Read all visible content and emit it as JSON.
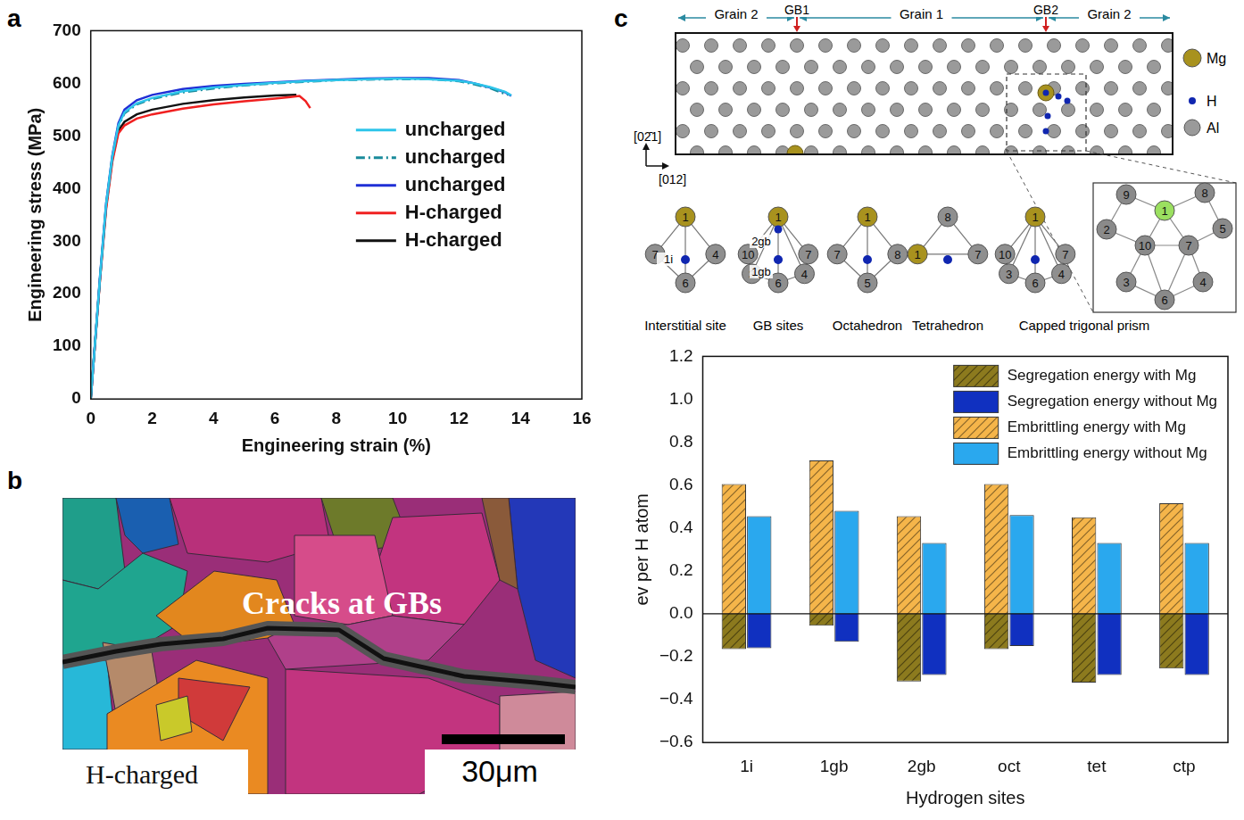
{
  "panel_labels": [
    "a",
    "b",
    "c"
  ],
  "chart_data": [
    {
      "type": "line",
      "xlabel": "Engineering strain (%)",
      "ylabel": "Engineering stress (MPa)",
      "xlim": [
        0,
        16
      ],
      "xticks": [
        0,
        2,
        4,
        6,
        8,
        10,
        12,
        14,
        16
      ],
      "ylim": [
        0,
        700
      ],
      "yticks": [
        0,
        100,
        200,
        300,
        400,
        500,
        600,
        700
      ],
      "grid": false,
      "legend": "right",
      "series": [
        {
          "name": "uncharged",
          "color": "#2ec5ea",
          "line_style": "solid",
          "x": [
            0,
            0.3,
            0.5,
            0.7,
            0.9,
            1.1,
            1.5,
            2,
            3,
            4,
            5,
            6,
            7,
            8,
            9,
            10,
            11,
            12,
            12.5,
            13,
            13.5,
            13.7
          ],
          "values": [
            0,
            230,
            370,
            460,
            520,
            545,
            562,
            572,
            585,
            592,
            597,
            601,
            604,
            606,
            608,
            609,
            608,
            605,
            600,
            593,
            584,
            577
          ]
        },
        {
          "name": "uncharged",
          "color": "#1a8b9b",
          "line_style": "dashdot",
          "x": [
            0,
            0.3,
            0.5,
            0.7,
            0.9,
            1.1,
            1.5,
            2,
            3,
            4,
            5,
            6,
            7,
            8,
            9,
            10,
            11,
            12,
            12.5,
            13,
            13.4,
            13.6
          ],
          "values": [
            0,
            228,
            368,
            458,
            518,
            543,
            560,
            570,
            583,
            590,
            596,
            600,
            603,
            606,
            607,
            608,
            608,
            604,
            598,
            591,
            582,
            578
          ]
        },
        {
          "name": "uncharged",
          "color": "#1f2fd6",
          "line_style": "solid",
          "x": [
            0,
            0.3,
            0.5,
            0.7,
            0.9,
            1.1,
            1.5,
            2,
            3,
            4,
            5,
            6,
            7,
            8,
            9,
            10,
            11,
            12,
            12.5,
            13,
            13.5,
            13.7
          ],
          "values": [
            0,
            232,
            372,
            462,
            524,
            550,
            568,
            578,
            589,
            595,
            599,
            602,
            605,
            607,
            609,
            610,
            610,
            606,
            600,
            592,
            583,
            576
          ]
        },
        {
          "name": "H-charged",
          "color": "#f02020",
          "line_style": "solid",
          "x": [
            0,
            0.3,
            0.5,
            0.7,
            0.9,
            1.1,
            1.5,
            2,
            3,
            4,
            5,
            6,
            6.5,
            6.8,
            7.0,
            7.15
          ],
          "values": [
            0,
            225,
            360,
            450,
            505,
            520,
            533,
            541,
            552,
            560,
            566,
            571,
            574,
            576,
            566,
            553
          ]
        },
        {
          "name": "H-charged",
          "color": "#111111",
          "line_style": "solid",
          "x": [
            0,
            0.3,
            0.5,
            0.7,
            0.9,
            1.1,
            1.5,
            2,
            3,
            4,
            5,
            6,
            6.7
          ],
          "values": [
            0,
            227,
            365,
            455,
            510,
            527,
            541,
            550,
            561,
            568,
            573,
            577,
            578
          ]
        }
      ]
    },
    {
      "type": "bar",
      "xlabel": "Hydrogen sites",
      "ylabel": "ev per H atom",
      "categories": [
        "1i",
        "1gb",
        "2gb",
        "oct",
        "tet",
        "ctp"
      ],
      "ylim": [
        -0.6,
        1.2
      ],
      "yticks": [
        {
          "value": -0.6,
          "label": "−0.6"
        },
        {
          "value": -0.4,
          "label": "−0.4"
        },
        {
          "value": -0.2,
          "label": "−0.2"
        },
        {
          "value": 0,
          "label": "0.0"
        },
        0.2,
        0.4,
        0.6,
        0.8,
        {
          "value": 1,
          "label": "1.0"
        },
        1.2
      ],
      "stacked": true,
      "grid": false,
      "legend": "upper right",
      "series": [
        {
          "name": "Segregation energy with Mg",
          "color": "#8c7a1e",
          "values": [
            -0.165,
            -0.055,
            -0.315,
            -0.165,
            -0.32,
            -0.255
          ]
        },
        {
          "name": "Segregation energy without Mg",
          "color": "#1030c0",
          "values": [
            -0.16,
            -0.13,
            -0.285,
            -0.15,
            -0.285,
            -0.285
          ]
        },
        {
          "name": "Embrittling energy with Mg",
          "color": "#f5b54a",
          "values": [
            0.605,
            0.715,
            0.455,
            0.605,
            0.45,
            0.515
          ]
        },
        {
          "name": "Embrittling energy without Mg",
          "color": "#2aa8ee",
          "values": [
            0.455,
            0.48,
            0.33,
            0.46,
            0.33,
            0.33
          ]
        }
      ]
    }
  ],
  "panel_b": {
    "annotation": "Cracks at GBs",
    "caption": "H-charged",
    "scale_bar": "30μm"
  },
  "panel_c_structure": {
    "grains": [
      "Grain 2",
      "Grain 1",
      "Grain 2"
    ],
    "boundaries": [
      "GB1",
      "GB2"
    ],
    "directions": [
      "[02̄1]",
      "[012]"
    ],
    "legend": [
      "Mg",
      "H",
      "Al"
    ],
    "clusters": [
      {
        "caption": "Interstitial site",
        "atoms": [
          "1",
          "7",
          "6",
          "4"
        ],
        "h_labels": [
          "1i"
        ]
      },
      {
        "caption": "GB sites",
        "atoms": [
          "1",
          "10",
          "3",
          "6",
          "4",
          "7"
        ],
        "h_labels": [
          "2gb",
          "1gb"
        ]
      },
      {
        "caption": "Octahedron",
        "atoms": [
          "1",
          "7",
          "5",
          "8"
        ],
        "h_labels": []
      },
      {
        "caption": "Tetrahedron",
        "atoms": [
          "8",
          "1",
          "7"
        ],
        "h_labels": []
      },
      {
        "caption": "Capped trigonal prism",
        "atoms": [
          "1",
          "10",
          "3",
          "6",
          "4",
          "7"
        ],
        "h_labels": []
      }
    ],
    "zoom_atoms": [
      "9",
      "8",
      "2",
      "1",
      "5",
      "10",
      "7",
      "3",
      "4",
      "6"
    ]
  }
}
